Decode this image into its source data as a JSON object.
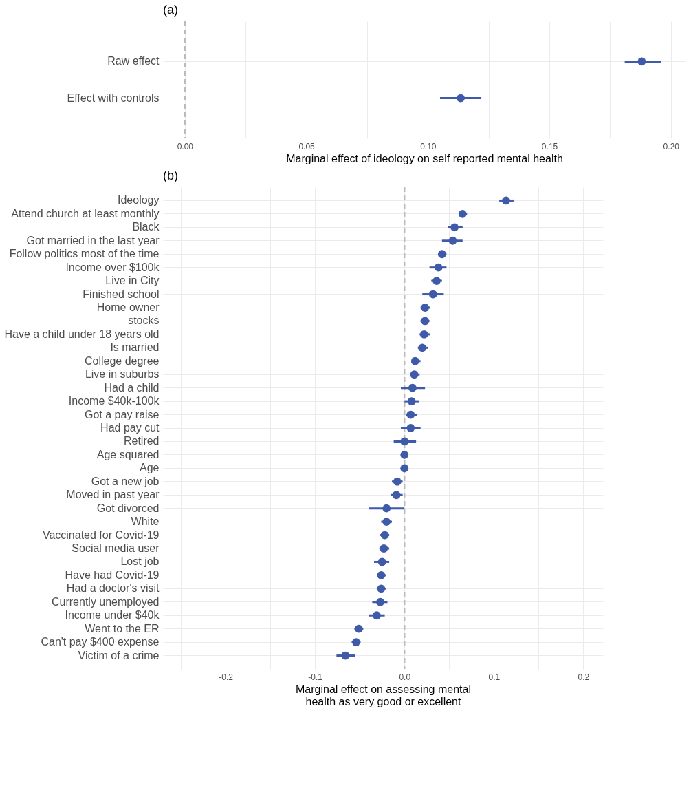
{
  "chart_data": [
    {
      "type": "scatter",
      "title": "(a)",
      "orientation": "horizontal",
      "xlabel": "Marginal effect of ideology on self reported mental health",
      "categories": [
        "Raw effect",
        "Effect with controls"
      ],
      "values": [
        0.188,
        0.1135
      ],
      "errors": [
        [
          0.181,
          0.196
        ],
        [
          0.105,
          0.122
        ]
      ],
      "color": "#3f5aa8",
      "marker": "circle",
      "grid": true,
      "xlim": [
        -0.009,
        0.206
      ],
      "xticks": [
        {
          "value": 0,
          "label": "0.00"
        },
        {
          "value": 0.025,
          "label": null
        },
        {
          "value": 0.05,
          "label": "0.05"
        },
        {
          "value": 0.075,
          "label": null
        },
        {
          "value": 0.1,
          "label": "0.10"
        },
        {
          "value": 0.125,
          "label": null
        },
        {
          "value": 0.15,
          "label": "0.15"
        },
        {
          "value": 0.175,
          "label": null
        },
        {
          "value": 0.2,
          "label": "0.20"
        }
      ],
      "ref_lines": [
        {
          "axis": "x",
          "value": 0,
          "color": "#bbbbbb",
          "line_style": "dashed"
        }
      ]
    },
    {
      "type": "scatter",
      "title": "(b)",
      "orientation": "horizontal",
      "xlabel": "Marginal effect on assessing mental health as very good or excellent",
      "categories": [
        "Ideology",
        "Attend church at least monthly",
        "Black",
        "Got married in the last year",
        "Follow politics most of the time",
        "Income over $100k",
        "Live in City",
        "Finished school",
        "Home owner",
        "stocks",
        "Have a child under 18 years old",
        "Is married",
        "College degree",
        "Live in suburbs",
        "Had a child",
        "Income $40k-100k",
        "Got a pay raise",
        "Had pay cut",
        "Retired",
        "Age squared",
        "Age",
        "Got a new job",
        "Moved in past year",
        "Got divorced",
        "White",
        "Vaccinated for Covid-19",
        "Social media user",
        "Lost job",
        "Have had Covid-19",
        "Had a doctor's visit",
        "Currently unemployed",
        "Income under $40k",
        "Went to the ER",
        "Can't pay $400 expense",
        "Victim of a crime"
      ],
      "values": [
        0.1136,
        0.065,
        0.056,
        0.054,
        0.042,
        0.038,
        0.036,
        0.032,
        0.023,
        0.023,
        0.022,
        0.02,
        0.012,
        0.011,
        0.009,
        0.008,
        0.007,
        0.007,
        0.0,
        0.0,
        0.0,
        -0.008,
        -0.009,
        -0.02,
        -0.02,
        -0.022,
        -0.023,
        -0.025,
        -0.026,
        -0.026,
        -0.027,
        -0.031,
        -0.051,
        -0.054,
        -0.066
      ],
      "errors": [
        [
          0.106,
          0.122
        ],
        [
          0.062,
          0.07
        ],
        [
          0.049,
          0.065
        ],
        [
          0.042,
          0.065
        ],
        [
          0.038,
          0.047
        ],
        [
          0.028,
          0.047
        ],
        [
          0.03,
          0.042
        ],
        [
          0.02,
          0.044
        ],
        [
          0.018,
          0.029
        ],
        [
          0.018,
          0.028
        ],
        [
          0.017,
          0.029
        ],
        [
          0.015,
          0.026
        ],
        [
          0.008,
          0.018
        ],
        [
          0.006,
          0.017
        ],
        [
          -0.004,
          0.023
        ],
        [
          0.0,
          0.016
        ],
        [
          0.002,
          0.014
        ],
        [
          -0.004,
          0.018
        ],
        [
          -0.012,
          0.013
        ],
        null,
        null,
        [
          -0.014,
          -0.002
        ],
        [
          -0.015,
          -0.002
        ],
        [
          -0.04,
          0.0
        ],
        [
          -0.026,
          -0.014
        ],
        [
          -0.027,
          -0.017
        ],
        [
          -0.028,
          -0.017
        ],
        [
          -0.034,
          -0.017
        ],
        [
          -0.03,
          -0.021
        ],
        [
          -0.031,
          -0.021
        ],
        [
          -0.036,
          -0.019
        ],
        [
          -0.04,
          -0.022
        ],
        [
          -0.056,
          -0.046
        ],
        [
          -0.059,
          -0.049
        ],
        [
          -0.076,
          -0.055
        ]
      ],
      "color": "#3f5aa8",
      "marker": "circle",
      "grid": true,
      "xlim": [
        -0.27,
        0.222
      ],
      "xticks": [
        {
          "value": -0.25,
          "label": null
        },
        {
          "value": -0.2,
          "label": "-0.2"
        },
        {
          "value": -0.15,
          "label": null
        },
        {
          "value": -0.1,
          "label": "-0.1"
        },
        {
          "value": -0.05,
          "label": null
        },
        {
          "value": 0,
          "label": "0.0"
        },
        {
          "value": 0.05,
          "label": null
        },
        {
          "value": 0.1,
          "label": "0.1"
        },
        {
          "value": 0.15,
          "label": null
        },
        {
          "value": 0.2,
          "label": "0.2"
        }
      ],
      "ref_lines": [
        {
          "axis": "x",
          "value": 0,
          "color": "#bbbbbb",
          "line_style": "dashed"
        }
      ]
    }
  ]
}
